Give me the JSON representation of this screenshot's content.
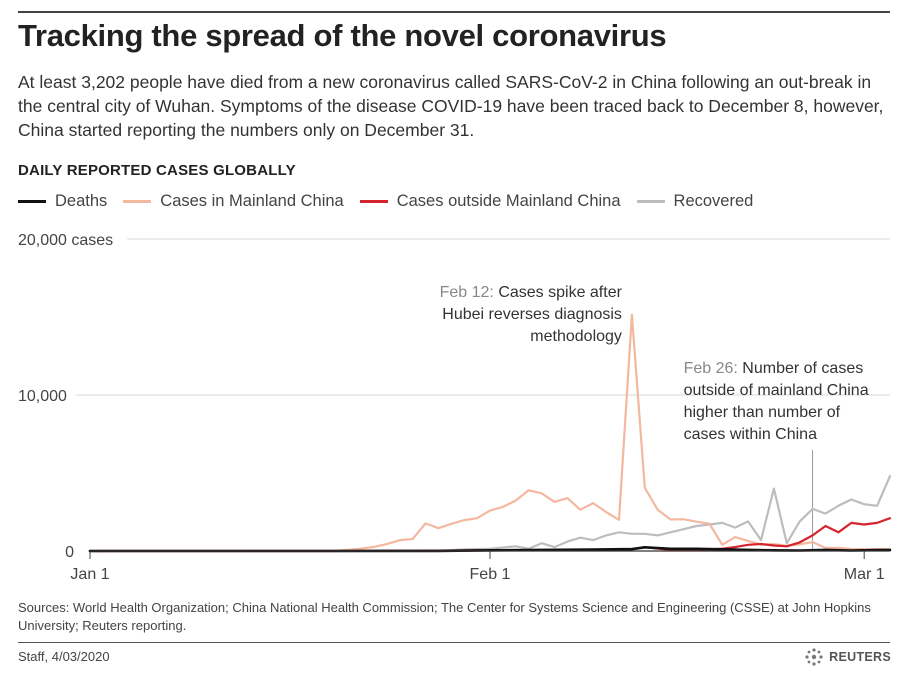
{
  "header": {
    "title": "Tracking the spread of the novel coronavirus",
    "subtitle": "At least 3,202 people have died from a new coronavirus called SARS-CoV-2 in China following an out-break in the central city of Wuhan. Symptoms of the disease COVID-19 have been traced back to December 8, however, China started reporting the numbers only on December 31.",
    "section_label": "DAILY REPORTED CASES GLOBALLY"
  },
  "footer": {
    "sources": "Sources: World Health Organization; China National Health Commission; The Center for Systems Science and Engineering (CSSE) at John Hopkins University; Reuters reporting.",
    "byline": "Staff, 4/03/2020",
    "brand": "REUTERS"
  },
  "chart_data": {
    "type": "line",
    "ylim": [
      0,
      20000
    ],
    "y_ticks": [
      {
        "value": 20000,
        "label": "20,000 cases"
      },
      {
        "value": 10000,
        "label": "10,000"
      },
      {
        "value": 0,
        "label": "0"
      }
    ],
    "x_ticks": [
      {
        "day": 1,
        "label": "Jan 1"
      },
      {
        "day": 32,
        "label": "Feb 1"
      },
      {
        "day": 61,
        "label": "Mar 1"
      }
    ],
    "x_domain_days": [
      1,
      63
    ],
    "series": [
      {
        "name": "Deaths",
        "color": "#111111",
        "x": [
          1,
          20,
          28,
          32,
          36,
          40,
          43,
          44,
          46,
          48,
          50,
          52,
          54,
          56,
          58,
          60,
          62,
          63
        ],
        "values": [
          0,
          0,
          5,
          45,
          70,
          95,
          120,
          240,
          140,
          140,
          110,
          70,
          45,
          30,
          70,
          35,
          60,
          65
        ]
      },
      {
        "name": "Cases in Mainland China",
        "color": "#f4b8a0",
        "x": [
          1,
          20,
          21,
          22,
          23,
          24,
          25,
          26,
          27,
          28,
          29,
          30,
          31,
          32,
          33,
          34,
          35,
          36,
          37,
          38,
          39,
          40,
          41,
          42,
          43,
          44,
          45,
          46,
          47,
          48,
          49,
          50,
          51,
          52,
          53,
          54,
          55,
          56,
          57,
          58,
          59,
          60,
          61,
          62,
          63
        ],
        "values": [
          0,
          20,
          80,
          150,
          260,
          440,
          690,
          770,
          1770,
          1460,
          1740,
          1980,
          2100,
          2590,
          2830,
          3240,
          3890,
          3700,
          3150,
          3390,
          2650,
          3070,
          2500,
          2000,
          15150,
          4050,
          2640,
          2020,
          2040,
          1880,
          1750,
          400,
          890,
          650,
          410,
          440,
          330,
          430,
          570,
          200,
          200,
          130,
          120,
          120,
          130
        ]
      },
      {
        "name": "Cases outside Mainland China",
        "color": "#d6242f",
        "x": [
          1,
          20,
          30,
          40,
          43,
          44,
          46,
          48,
          50,
          51,
          52,
          53,
          54,
          55,
          56,
          57,
          58,
          59,
          60,
          61,
          62,
          63
        ],
        "values": [
          0,
          0,
          30,
          50,
          100,
          250,
          70,
          80,
          150,
          250,
          400,
          450,
          350,
          300,
          550,
          1000,
          1600,
          1200,
          1800,
          1700,
          1800,
          2100
        ]
      },
      {
        "name": "Recovered",
        "color": "#bdbdbd",
        "x": [
          1,
          28,
          30,
          32,
          34,
          35,
          36,
          37,
          38,
          39,
          40,
          41,
          42,
          43,
          44,
          45,
          46,
          47,
          48,
          49,
          50,
          51,
          52,
          53,
          54,
          55,
          56,
          57,
          58,
          59,
          60,
          61,
          62,
          63
        ],
        "values": [
          0,
          0,
          100,
          150,
          300,
          150,
          500,
          250,
          600,
          850,
          700,
          1000,
          1200,
          1100,
          1100,
          1000,
          1200,
          1400,
          1600,
          1700,
          1800,
          1500,
          1900,
          700,
          4000,
          500,
          1900,
          2700,
          2400,
          2900,
          3300,
          3000,
          2900,
          4800
        ]
      }
    ],
    "annotations": [
      {
        "day": 43,
        "value": 15150,
        "lead": "Feb 12:",
        "text": [
          "Cases spike after",
          "Hubei reverses diagnosis",
          "methodology"
        ],
        "align": "end"
      },
      {
        "day": 57,
        "value": 0,
        "lead": "Feb 26:",
        "text": [
          "Number of cases",
          "outside of mainland China",
          "higher than number of",
          "cases within China"
        ],
        "align": "start"
      }
    ]
  }
}
